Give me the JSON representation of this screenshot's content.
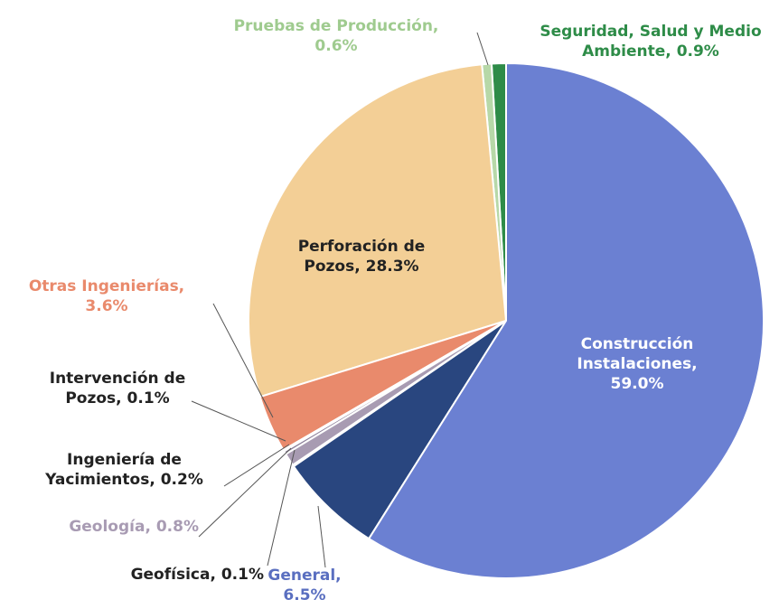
{
  "chart_data": {
    "type": "pie",
    "categories": [
      "Construcción Instalaciones,",
      "General,",
      "Geofísica,",
      "Geología,",
      "Ingeniería de Yacimientos,",
      "Intervención de Pozos,",
      "Otras Ingenierías,",
      "Perforación de Pozos,",
      "Pruebas de Producción,",
      "Seguridad, Salud y Medio Ambiente,"
    ],
    "values": [
      59.0,
      6.5,
      0.1,
      0.8,
      0.2,
      0.1,
      3.6,
      28.3,
      0.6,
      0.9
    ],
    "value_labels": [
      "59.0%",
      "6.5%",
      "0.1%",
      "0.8%",
      "0.2%",
      "0.1%",
      "3.6%",
      "28.3%",
      "0.6%",
      "0.9%"
    ],
    "colors": [
      "#6b80d2",
      "#29467f",
      "#3b3f6e",
      "#a89bb2",
      "#8c7f99",
      "#c7b8a2",
      "#e98a6c",
      "#f3cf96",
      "#b7d8a8",
      "#2e8c48"
    ]
  }
}
